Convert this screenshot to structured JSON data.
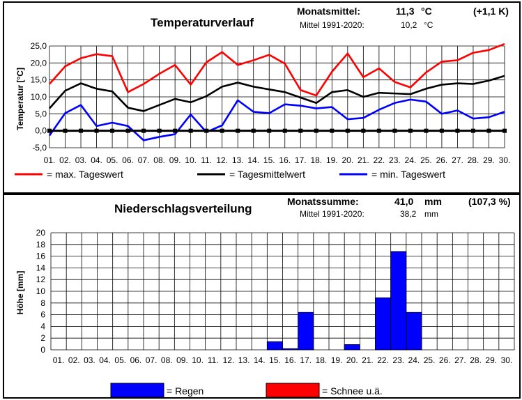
{
  "temp": {
    "title": "Temperaturverlauf",
    "monthly_label": "Monatsmittel:",
    "monthly_value": "11,3",
    "monthly_unit": "°C",
    "monthly_diff": "(+1,1 K)",
    "ref_label": "Mittel 1991-2020:",
    "ref_value": "10,2",
    "ref_unit": "°C"
  },
  "precip": {
    "title": "Niederschlagsverteilung",
    "monthly_label": "Monatssumme:",
    "monthly_value": "41,0",
    "monthly_unit": "mm",
    "monthly_pct": "(107,3 %)",
    "ref_label": "Mittel 1991-2020:",
    "ref_value": "38,2",
    "ref_unit": "mm"
  },
  "colors": {
    "max": "#ff0000",
    "mean": "#000000",
    "min": "#0000ff",
    "rain": "#0000ff",
    "snow": "#ff0000",
    "grid": "#000000"
  },
  "chart_data": [
    {
      "type": "line",
      "title": "Temperaturverlauf",
      "ylabel": "Temperatur [°C]",
      "ylim": [
        -5,
        25
      ],
      "yticks": [
        "-5,0",
        "0,0",
        "5,0",
        "10,0",
        "15,0",
        "20,0",
        "25,0"
      ],
      "yticks_values": [
        -5,
        0,
        5,
        10,
        15,
        20,
        25
      ],
      "categories": [
        "01.",
        "02.",
        "03.",
        "04.",
        "05.",
        "06.",
        "07.",
        "08.",
        "09.",
        "10.",
        "11.",
        "12.",
        "13.",
        "14.",
        "15.",
        "16.",
        "17.",
        "18.",
        "19.",
        "20.",
        "21.",
        "22.",
        "23.",
        "24.",
        "25.",
        "26.",
        "27.",
        "28.",
        "29.",
        "30."
      ],
      "grid": true,
      "legend_position": "bottom",
      "series": [
        {
          "name": "= max.  Tageswert",
          "key": "max",
          "values": [
            13.8,
            19.0,
            21.4,
            22.6,
            22.0,
            11.4,
            13.8,
            16.8,
            19.4,
            13.6,
            20.2,
            23.2,
            19.4,
            20.8,
            22.4,
            19.8,
            12.0,
            10.4,
            17.4,
            22.8,
            15.8,
            18.4,
            14.4,
            12.8,
            17.2,
            20.4,
            20.8,
            23.0,
            23.8,
            25.6
          ]
        },
        {
          "name": "= Tagesmittelwert",
          "key": "mean",
          "values": [
            6.6,
            11.8,
            14.0,
            12.4,
            11.6,
            6.8,
            5.8,
            7.6,
            9.4,
            8.4,
            10.2,
            13.0,
            14.2,
            13.0,
            12.2,
            11.4,
            9.8,
            8.2,
            11.4,
            12.0,
            10.0,
            11.2,
            11.0,
            10.8,
            12.4,
            13.6,
            14.0,
            13.8,
            14.8,
            16.2
          ]
        },
        {
          "name": "= min. Tageswert",
          "key": "min",
          "values": [
            -1.4,
            5.2,
            7.6,
            1.4,
            2.4,
            1.4,
            -2.8,
            -1.8,
            -1.0,
            4.8,
            -0.4,
            1.6,
            9.0,
            5.6,
            5.2,
            7.8,
            7.4,
            6.6,
            7.0,
            3.4,
            3.8,
            6.2,
            8.2,
            9.2,
            8.6,
            5.0,
            6.0,
            3.6,
            4.0,
            5.6
          ]
        }
      ],
      "zero_markers": true
    },
    {
      "type": "bar",
      "title": "Niederschlagsverteilung",
      "ylabel": "Höhe [mm]",
      "ylim": [
        0,
        20
      ],
      "yticks": [
        "0",
        "2",
        "4",
        "6",
        "8",
        "10",
        "12",
        "14",
        "16",
        "18",
        "20"
      ],
      "yticks_values": [
        0,
        2,
        4,
        6,
        8,
        10,
        12,
        14,
        16,
        18,
        20
      ],
      "categories": [
        "01.",
        "02.",
        "03.",
        "04.",
        "05.",
        "06.",
        "07.",
        "08.",
        "09.",
        "10.",
        "11.",
        "12.",
        "13.",
        "14.",
        "15.",
        "16.",
        "17.",
        "18.",
        "19.",
        "20.",
        "21.",
        "22.",
        "23.",
        "24.",
        "25.",
        "26.",
        "27.",
        "28.",
        "29.",
        "30."
      ],
      "grid": true,
      "legend_position": "bottom",
      "series": [
        {
          "name": "= Regen",
          "key": "rain",
          "values": [
            0,
            0,
            0,
            0,
            0,
            0,
            0,
            0,
            0,
            0,
            0,
            0,
            0,
            0,
            1.4,
            0.2,
            6.4,
            0,
            0,
            0.9,
            0,
            8.9,
            16.8,
            6.4,
            0,
            0,
            0,
            0,
            0,
            0
          ]
        },
        {
          "name": "= Schnee u.ä.",
          "key": "snow",
          "values": [
            0,
            0,
            0,
            0,
            0,
            0,
            0,
            0,
            0,
            0,
            0,
            0,
            0,
            0,
            0,
            0,
            0,
            0,
            0,
            0,
            0,
            0,
            0,
            0,
            0,
            0,
            0,
            0,
            0,
            0
          ]
        }
      ]
    }
  ]
}
